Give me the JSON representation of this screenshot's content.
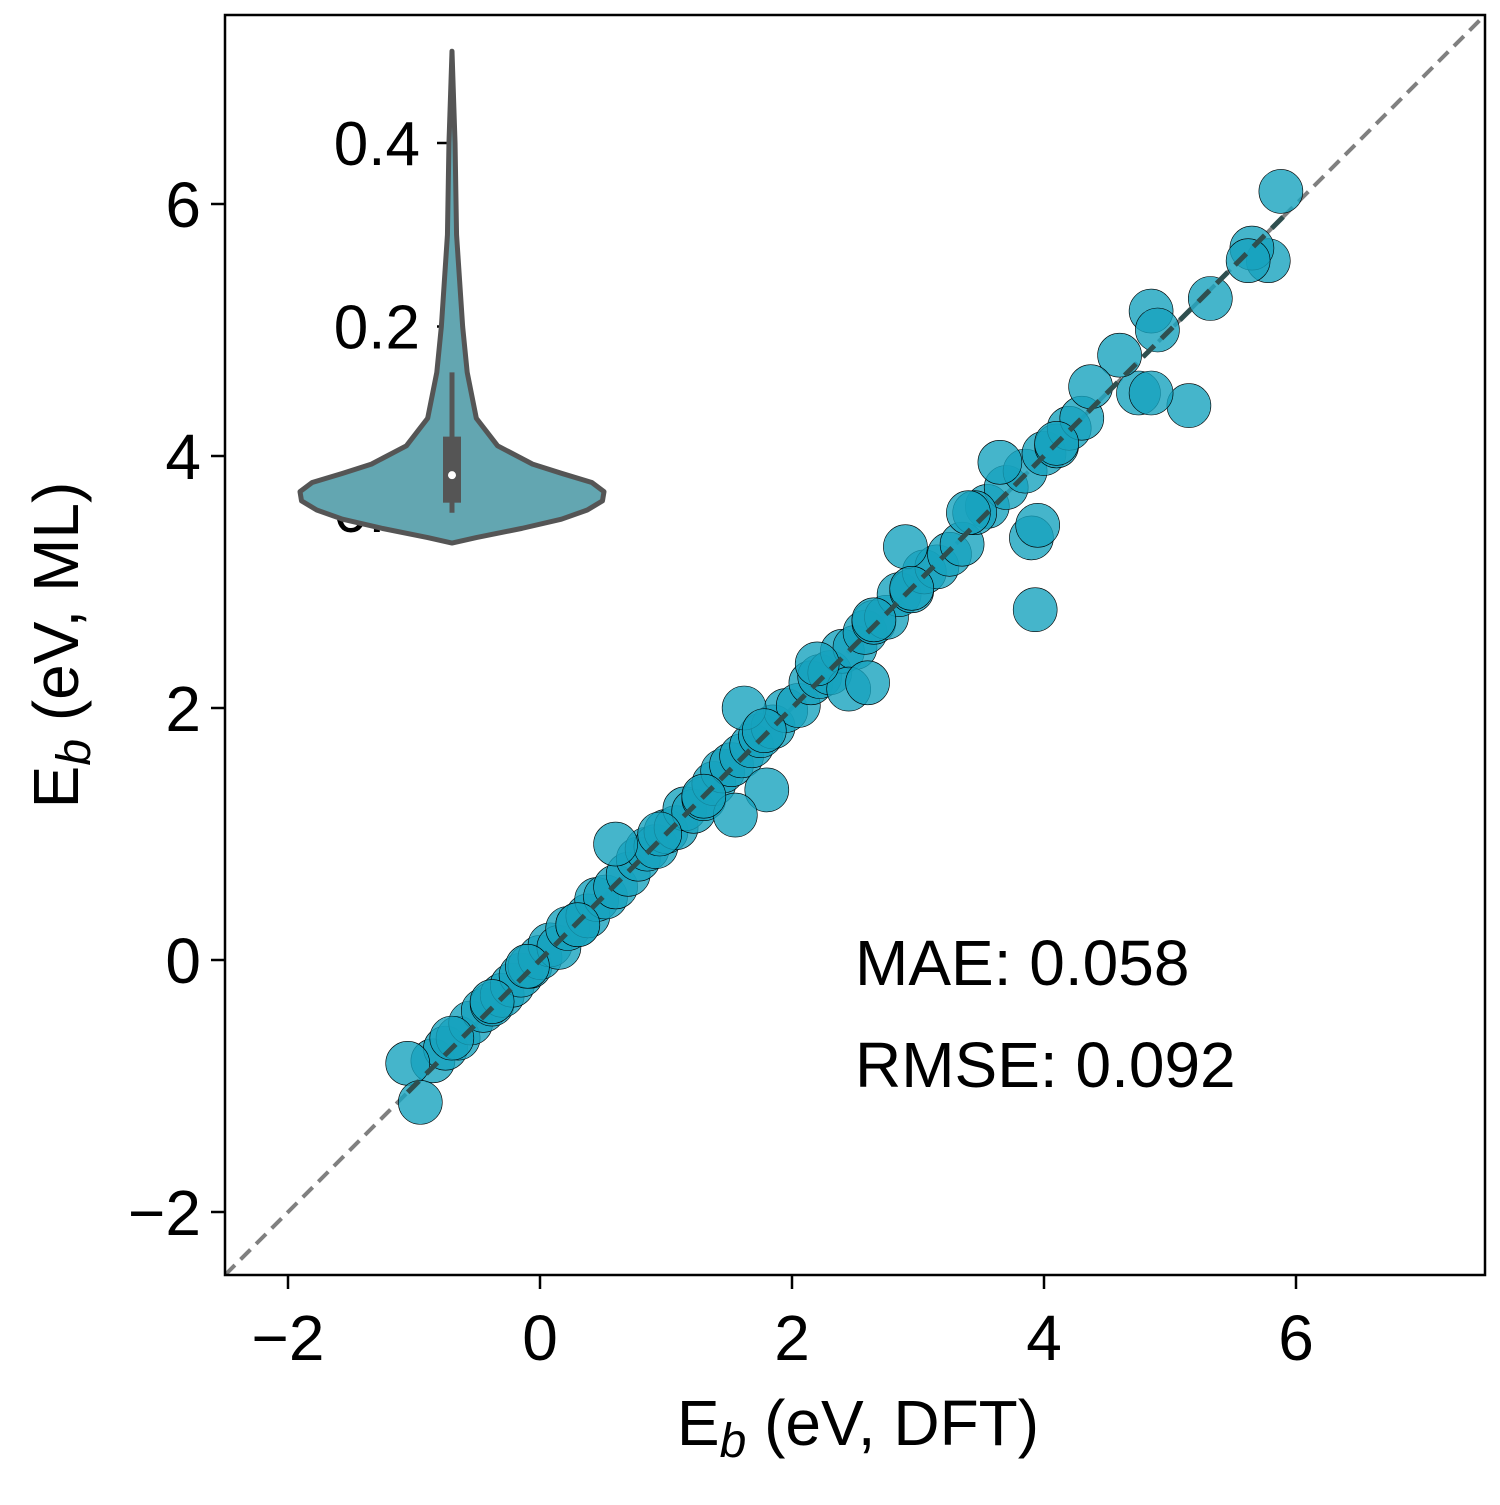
{
  "chart_data": {
    "type": "scatter",
    "xlabel": {
      "base": "E",
      "sub": "b",
      "rest": " (eV, DFT)"
    },
    "ylabel": {
      "base": "E",
      "sub": "b",
      "rest": " (eV, ML)"
    },
    "x": [
      -0.85,
      -0.75,
      -0.65,
      -0.55,
      -0.45,
      -0.38,
      -0.3,
      -0.22,
      -0.15,
      -0.08,
      0.0,
      0.08,
      0.15,
      0.22,
      0.3,
      0.38,
      0.45,
      0.52,
      0.6,
      0.7,
      0.78,
      0.85,
      0.92,
      1.0,
      1.08,
      1.15,
      1.22,
      1.3,
      1.38,
      1.45,
      1.52,
      1.6,
      1.68,
      1.75,
      1.85,
      1.95,
      2.05,
      2.15,
      2.22,
      2.3,
      2.4,
      2.5,
      2.58,
      2.65,
      2.75,
      2.85,
      2.95,
      3.05,
      3.15,
      3.25,
      3.35,
      3.55,
      3.7,
      3.85,
      4.0,
      4.1,
      4.2,
      4.3,
      3.93,
      5.15,
      3.9,
      3.95,
      4.85,
      5.88,
      5.78,
      5.65,
      5.62,
      5.32,
      4.75,
      4.85,
      4.6,
      4.37,
      4.9,
      -1.05,
      -0.95,
      3.65,
      3.45,
      1.8,
      1.55,
      0.6,
      2.9,
      2.45,
      2.6,
      1.62,
      2.2,
      0.95,
      0.3,
      -0.1,
      -0.38,
      -0.7,
      1.3,
      1.78,
      2.65,
      2.95,
      3.4,
      4.1
    ],
    "y": [
      -0.8,
      -0.7,
      -0.62,
      -0.5,
      -0.4,
      -0.35,
      -0.28,
      -0.2,
      -0.12,
      -0.05,
      0.02,
      0.12,
      0.1,
      0.25,
      0.28,
      0.35,
      0.48,
      0.5,
      0.58,
      0.68,
      0.8,
      0.88,
      0.9,
      1.02,
      1.05,
      1.2,
      1.18,
      1.28,
      1.4,
      1.5,
      1.55,
      1.62,
      1.7,
      1.78,
      1.85,
      1.98,
      2.02,
      2.2,
      2.25,
      2.28,
      2.45,
      2.48,
      2.6,
      2.68,
      2.72,
      2.9,
      2.93,
      3.08,
      3.12,
      3.22,
      3.3,
      3.6,
      3.75,
      3.88,
      4.02,
      4.08,
      4.22,
      4.3,
      2.78,
      4.4,
      3.35,
      3.45,
      5.15,
      6.1,
      5.55,
      5.65,
      5.55,
      5.25,
      4.5,
      4.5,
      4.8,
      4.55,
      5.0,
      -0.82,
      -1.13,
      3.95,
      3.55,
      1.35,
      1.15,
      0.92,
      3.28,
      2.15,
      2.2,
      2.0,
      2.35,
      1.0,
      0.28,
      -0.05,
      -0.33,
      -0.62,
      1.3,
      1.82,
      2.7,
      2.95,
      3.55,
      4.1
    ],
    "color": "#17a2be",
    "alpha": 0.8,
    "edgecolor": "#000000",
    "xlim": [
      -2.5,
      7.5
    ],
    "ylim": [
      -2.5,
      7.5
    ],
    "xticks": [
      {
        "value": -2,
        "label": "−2"
      },
      0,
      2,
      4,
      6
    ],
    "yticks": [
      {
        "value": -2,
        "label": "−2"
      },
      0,
      2,
      4,
      6
    ],
    "annotations": [
      "MAE: 0.058",
      "RMSE: 0.092"
    ],
    "reference_line": {
      "color": "#808080"
    },
    "fit_line": {
      "x": [
        -1.05,
        5.9
      ],
      "y": [
        -1.05,
        5.9
      ],
      "color": "#2f4f4f"
    },
    "inset": {
      "type": "violin",
      "ylim": [
        -0.05,
        0.5
      ],
      "yticks": [
        {
          "value": 0,
          "label": "0.0"
        },
        {
          "value": 0.2,
          "label": "0.2"
        },
        {
          "value": 0.4,
          "label": "0.4"
        }
      ],
      "y": [
        -0.036,
        -0.03,
        -0.02,
        -0.01,
        0.0,
        0.01,
        0.02,
        0.03,
        0.04,
        0.05,
        0.07,
        0.1,
        0.15,
        0.2,
        0.25,
        0.3,
        0.4,
        0.5
      ],
      "density": [
        0,
        0.16,
        0.46,
        0.72,
        0.89,
        0.99,
        1,
        0.92,
        0.72,
        0.53,
        0.3,
        0.16,
        0.1,
        0.07,
        0.05,
        0.03,
        0.02,
        0
      ],
      "box": {
        "whisker_low": -0.003,
        "q1": 0.008,
        "median": 0.038,
        "q3": 0.08,
        "whisker_high": 0.15
      },
      "color": "#63a6b1",
      "edgecolor": "#555555"
    }
  }
}
